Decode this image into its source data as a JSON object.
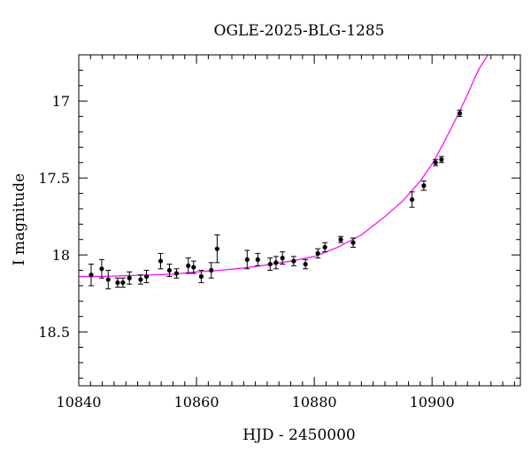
{
  "chart_data": {
    "type": "scatter",
    "title": "OGLE-2025-BLG-1285",
    "xlabel": "HJD - 2450000",
    "ylabel": "I magnitude",
    "xlim": [
      10840,
      10915
    ],
    "ylim": [
      18.85,
      16.7
    ],
    "y_inverted": true,
    "x_ticks": [
      10840,
      10860,
      10880,
      10900
    ],
    "y_ticks": [
      17,
      17.5,
      18,
      18.5
    ],
    "x_minor_step": 2,
    "y_minor_step": 0.1,
    "grid": false,
    "series": [
      {
        "type": "errorbar",
        "color": "#000000",
        "points": [
          {
            "x": 10842.1,
            "y": 18.13,
            "err": 0.07
          },
          {
            "x": 10843.9,
            "y": 18.09,
            "err": 0.06
          },
          {
            "x": 10845.0,
            "y": 18.16,
            "err": 0.06
          },
          {
            "x": 10846.6,
            "y": 18.18,
            "err": 0.03
          },
          {
            "x": 10847.5,
            "y": 18.18,
            "err": 0.03
          },
          {
            "x": 10848.6,
            "y": 18.15,
            "err": 0.04
          },
          {
            "x": 10850.5,
            "y": 18.16,
            "err": 0.03
          },
          {
            "x": 10851.5,
            "y": 18.14,
            "err": 0.04
          },
          {
            "x": 10853.9,
            "y": 18.04,
            "err": 0.05
          },
          {
            "x": 10855.4,
            "y": 18.1,
            "err": 0.04
          },
          {
            "x": 10856.6,
            "y": 18.12,
            "err": 0.03
          },
          {
            "x": 10858.6,
            "y": 18.07,
            "err": 0.05
          },
          {
            "x": 10859.5,
            "y": 18.08,
            "err": 0.04
          },
          {
            "x": 10860.8,
            "y": 18.14,
            "err": 0.04
          },
          {
            "x": 10862.5,
            "y": 18.1,
            "err": 0.05
          },
          {
            "x": 10863.5,
            "y": 17.96,
            "err": 0.09
          },
          {
            "x": 10868.6,
            "y": 18.03,
            "err": 0.06
          },
          {
            "x": 10870.4,
            "y": 18.03,
            "err": 0.04
          },
          {
            "x": 10872.5,
            "y": 18.06,
            "err": 0.04
          },
          {
            "x": 10873.5,
            "y": 18.05,
            "err": 0.04
          },
          {
            "x": 10874.6,
            "y": 18.02,
            "err": 0.04
          },
          {
            "x": 10876.5,
            "y": 18.04,
            "err": 0.03
          },
          {
            "x": 10878.5,
            "y": 18.06,
            "err": 0.03
          },
          {
            "x": 10880.6,
            "y": 17.99,
            "err": 0.03
          },
          {
            "x": 10881.8,
            "y": 17.95,
            "err": 0.03
          },
          {
            "x": 10884.5,
            "y": 17.9,
            "err": 0.02
          },
          {
            "x": 10886.6,
            "y": 17.92,
            "err": 0.03
          },
          {
            "x": 10896.6,
            "y": 17.64,
            "err": 0.05
          },
          {
            "x": 10898.6,
            "y": 17.55,
            "err": 0.03
          },
          {
            "x": 10900.6,
            "y": 17.4,
            "err": 0.02
          },
          {
            "x": 10901.6,
            "y": 17.38,
            "err": 0.02
          },
          {
            "x": 10904.7,
            "y": 17.08,
            "err": 0.02
          }
        ]
      },
      {
        "type": "line",
        "color": "#ff00ff",
        "x": [
          10840,
          10844,
          10848,
          10852,
          10856,
          10860,
          10864,
          10868,
          10872,
          10876,
          10880,
          10884,
          10888,
          10892,
          10895,
          10898,
          10900,
          10902,
          10904,
          10906,
          10907,
          10908,
          10909.5
        ],
        "y": [
          18.14,
          18.14,
          18.135,
          18.13,
          18.125,
          18.11,
          18.1,
          18.085,
          18.065,
          18.04,
          18.01,
          17.95,
          17.87,
          17.75,
          17.65,
          17.52,
          17.41,
          17.27,
          17.12,
          16.96,
          16.87,
          16.79,
          16.7
        ]
      }
    ]
  }
}
